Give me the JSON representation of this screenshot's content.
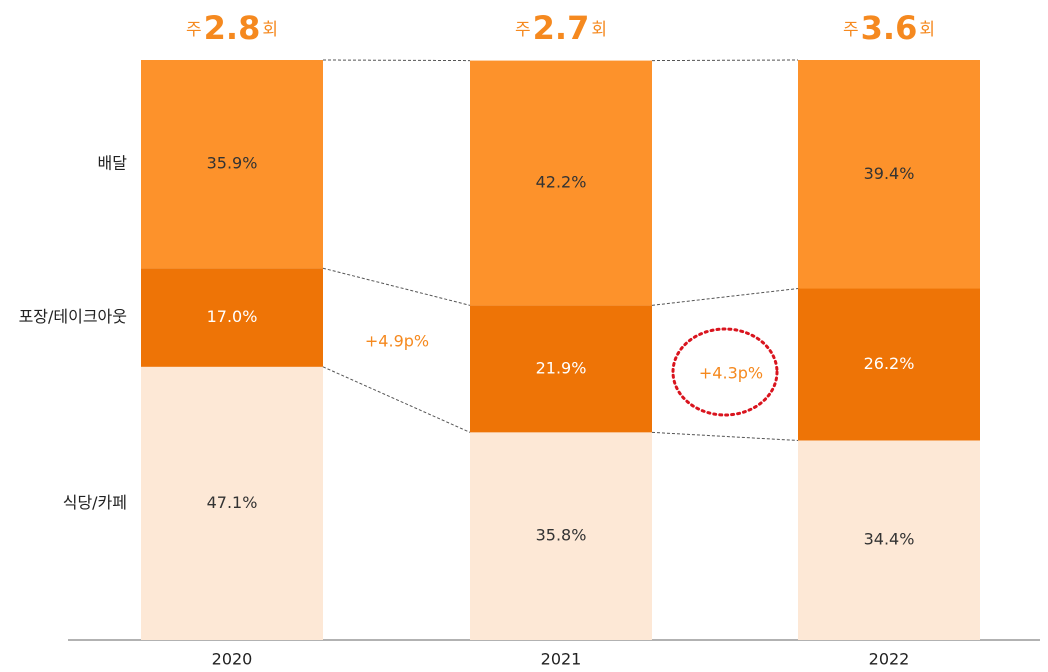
{
  "chart_data": {
    "type": "stacked_bar",
    "categories": [
      "2020",
      "2021",
      "2022"
    ],
    "series": [
      {
        "name": "식당/카페",
        "color": "#fde8d6",
        "label_color": "#333333",
        "values": [
          47.1,
          35.8,
          34.4
        ],
        "value_labels": [
          "47.1%",
          "35.8%",
          "34.4%"
        ]
      },
      {
        "name": "포장/테이크아웃",
        "color": "#ee7406",
        "label_color": "#ffffff",
        "values": [
          17.0,
          21.9,
          26.2
        ],
        "value_labels": [
          "17.0%",
          "21.9%",
          "26.2%"
        ]
      },
      {
        "name": "배달",
        "color": "#fd922b",
        "label_color": "#333333",
        "values": [
          35.9,
          42.2,
          39.4
        ],
        "value_labels": [
          "35.9%",
          "42.2%",
          "39.4%"
        ]
      }
    ],
    "ylim": [
      0,
      100
    ],
    "top_labels": [
      {
        "prefix": "주",
        "value": 2.8,
        "suffix": "회"
      },
      {
        "prefix": "주",
        "value": 2.7,
        "suffix": "회"
      },
      {
        "prefix": "주",
        "value": 3.6,
        "suffix": "회"
      }
    ],
    "annotations": [
      "+4.9p%",
      "+4.3p%"
    ]
  }
}
